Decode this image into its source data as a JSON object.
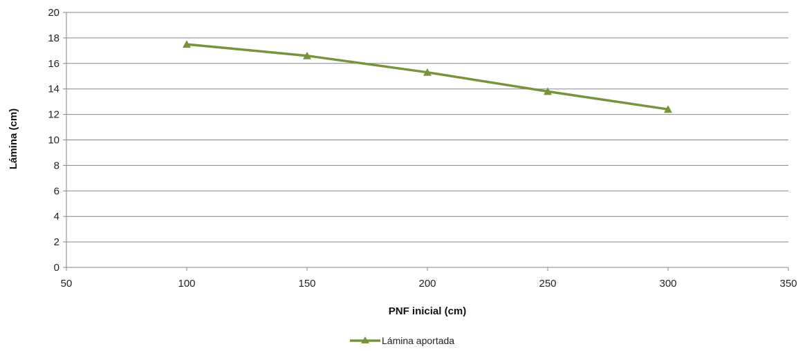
{
  "chart_data": {
    "type": "line",
    "xlabel": "PNF inicial (cm)",
    "ylabel": "Lámina (cm)",
    "xlim": [
      50,
      350
    ],
    "ylim": [
      0,
      20
    ],
    "xticks": [
      "50",
      "100",
      "150",
      "200",
      "250",
      "300",
      "350"
    ],
    "yticks": [
      "0",
      "2",
      "4",
      "6",
      "8",
      "10",
      "12",
      "14",
      "16",
      "18",
      "20"
    ],
    "grid": "horizontal",
    "legend_position": "bottom",
    "series": [
      {
        "name": "Lámina aportada",
        "color": "#77933c",
        "marker": "triangle",
        "x": [
          100,
          150,
          200,
          250,
          300
        ],
        "y": [
          17.5,
          16.6,
          15.3,
          13.8,
          12.4
        ]
      }
    ]
  }
}
